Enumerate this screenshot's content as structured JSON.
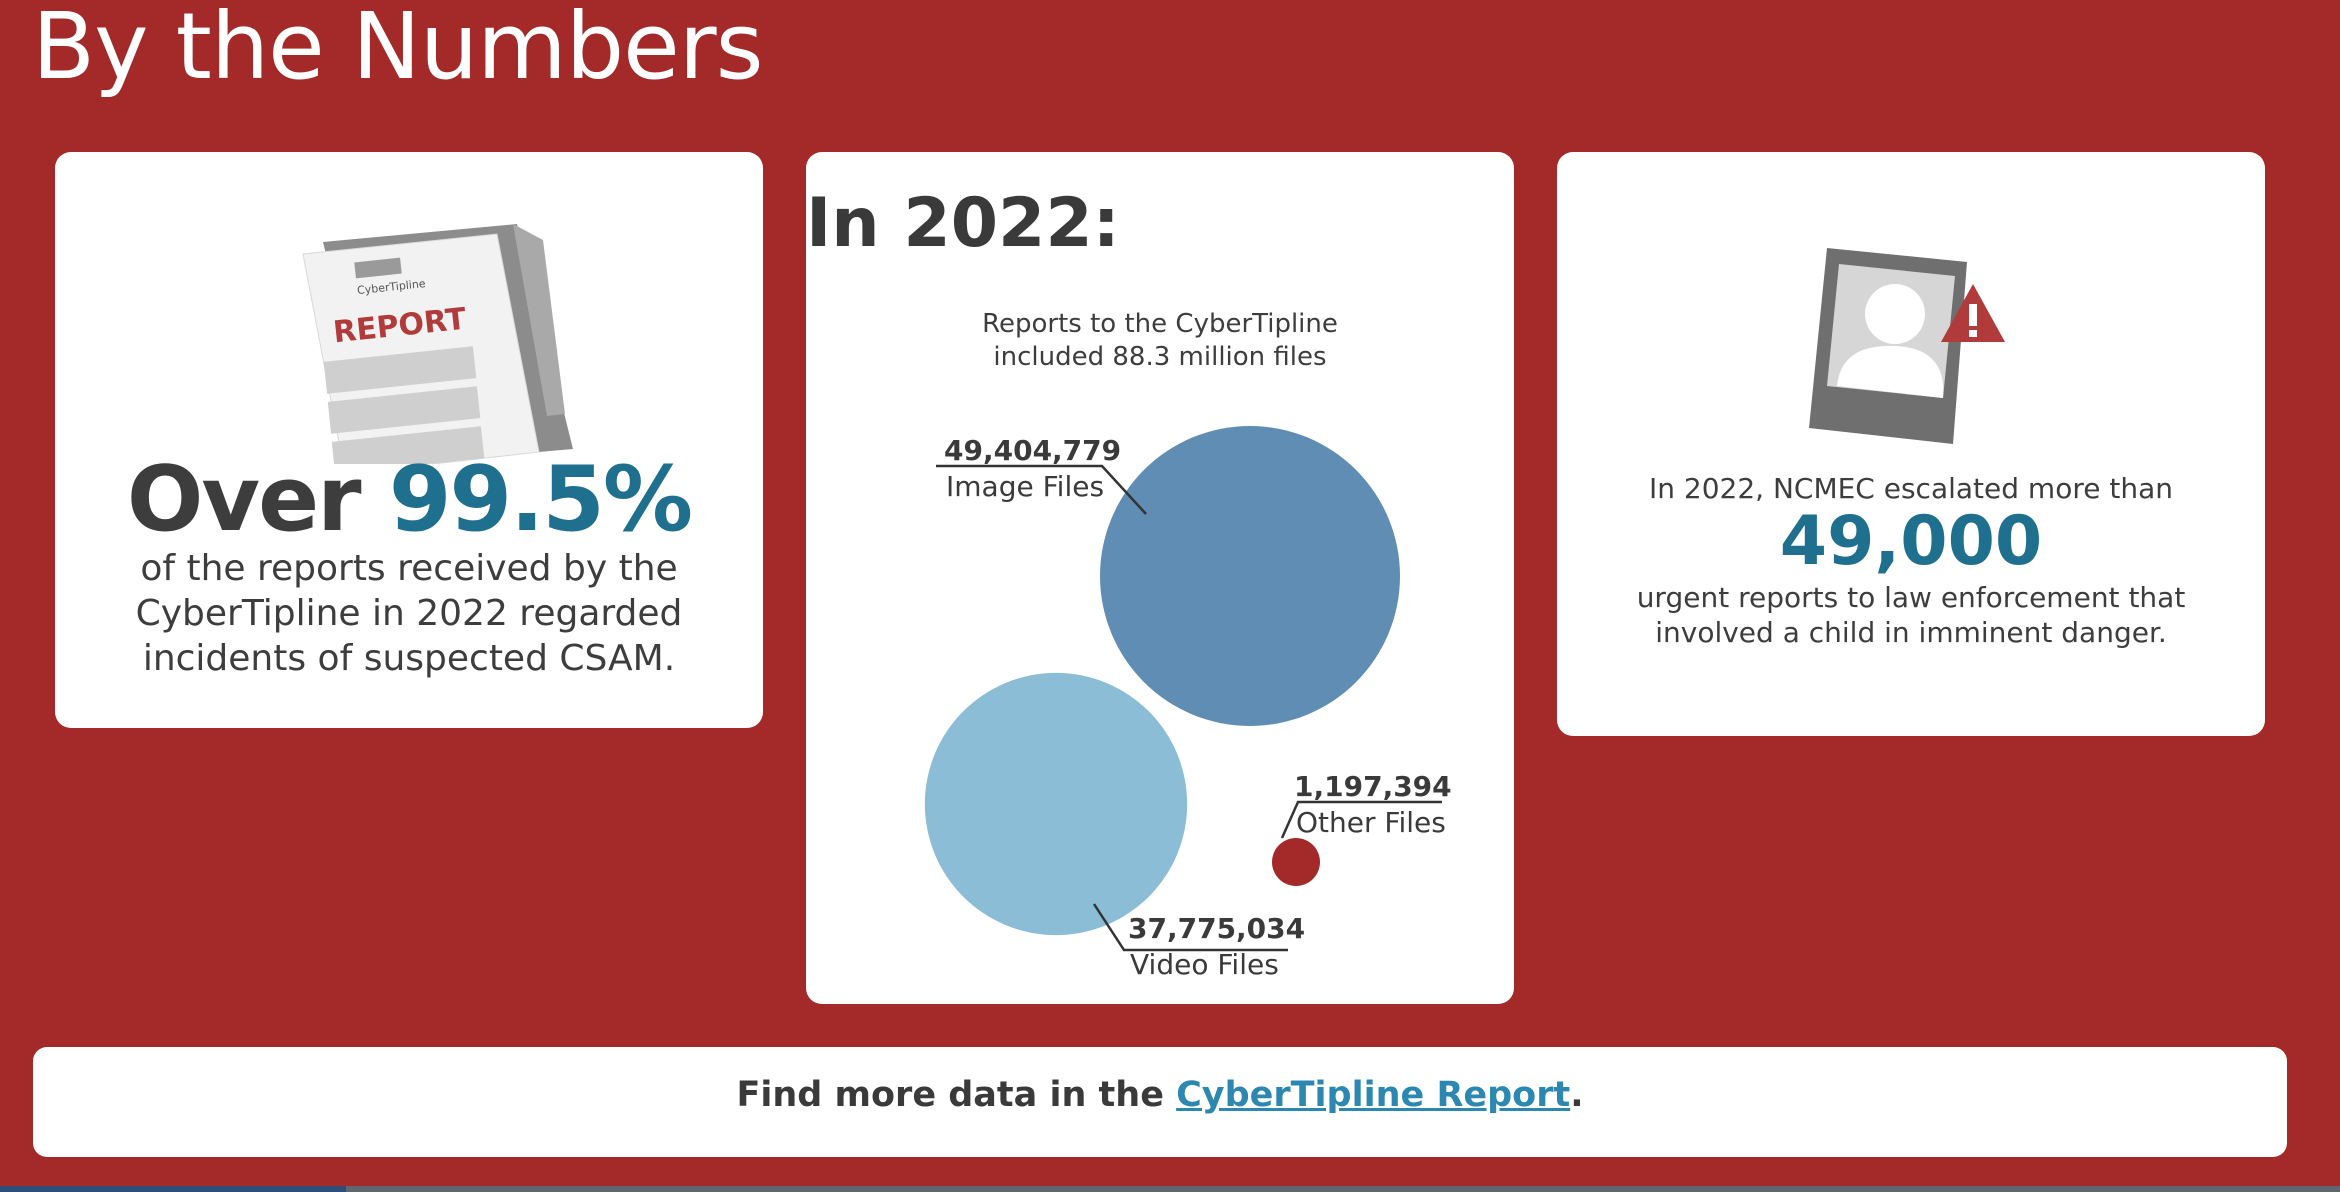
{
  "page": {
    "title": "By the Numbers"
  },
  "colors": {
    "background": "#a32a28",
    "accent_blue": "#1f6f8e",
    "image_files": "#5f8db4",
    "video_files": "#8bbdd6",
    "other_files": "#a32a28",
    "link": "#2c88b0"
  },
  "left_card": {
    "icon": "report-document-icon",
    "icon_logo_text": "CyberTipline",
    "icon_label": "REPORT",
    "headline_prefix": "Over",
    "headline_value": "99.5%",
    "description": "of the reports received by the CyberTipline in 2022 regarded incidents of suspected CSAM."
  },
  "middle_card": {
    "heading": "In 2022:",
    "caption_line1": "Reports to the CyberTipline",
    "caption_line2": "included 88.3 million files"
  },
  "chart_data": {
    "type": "bubble",
    "title": "Reports to the CyberTipline included 88.3 million files",
    "series": [
      {
        "name": "Image Files",
        "value": 49404779,
        "value_label": "49,404,779",
        "color": "#5f8db4"
      },
      {
        "name": "Video Files",
        "value": 37775034,
        "value_label": "37,775,034",
        "color": "#8bbdd6"
      },
      {
        "name": "Other Files",
        "value": 1197394,
        "value_label": "1,197,394",
        "color": "#a32a28"
      }
    ]
  },
  "right_card": {
    "icon": "missing-child-warning-icon",
    "lead": "In 2022, NCMEC escalated more than",
    "number": "49,000",
    "description": "urgent reports to law enforcement that involved a child in imminent danger."
  },
  "banner": {
    "text_before": "Find more data in the ",
    "link_text": "CyberTipline Report",
    "text_after": "."
  }
}
